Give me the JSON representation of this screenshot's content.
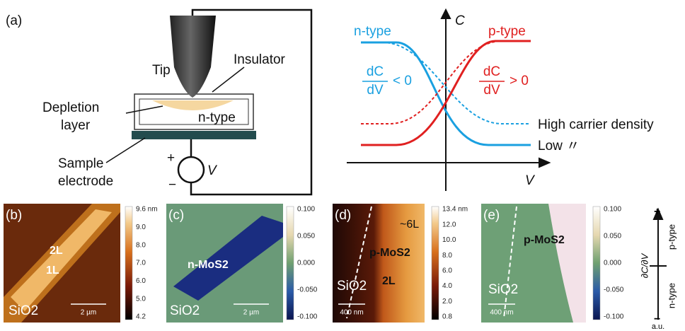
{
  "panel_a": {
    "label": "(a)",
    "schematic": {
      "tip": "Tip",
      "insulator": "Insulator",
      "depletion": [
        "Depletion",
        "layer"
      ],
      "n_type": "n-type",
      "electrode": [
        "Sample",
        "electrode"
      ],
      "plus": "+",
      "minus": "−",
      "voltage": "V"
    },
    "graph": {
      "y_axis": "C",
      "x_axis": "V",
      "n_type": "n-type",
      "p_type": "p-type",
      "n_formula": {
        "numerator": "dC",
        "denominator": "dV",
        "relation": "< 0"
      },
      "p_formula": {
        "numerator": "dC",
        "denominator": "dV",
        "relation": "> 0"
      },
      "high": "High carrier density",
      "low": "Low 〃"
    }
  },
  "panels": [
    {
      "label": "(b)",
      "texts": [
        "2L",
        "1L"
      ],
      "substrate": "SiO2",
      "scale": "2 µm",
      "colorbar": [
        "9.6 nm",
        "9.0",
        "8.0",
        "7.0",
        "6.0",
        "5.0",
        "4.2"
      ]
    },
    {
      "label": "(c)",
      "texts": [
        "n-MoS2"
      ],
      "substrate": "SiO2",
      "scale": "2 µm",
      "colorbar": [
        "0.100",
        "0.050",
        "0.000",
        "-0.050",
        "-0.100"
      ]
    },
    {
      "label": "(d)",
      "texts": [
        "~6L",
        "p-MoS2",
        "2L"
      ],
      "substrate": "SiO2",
      "scale": "400 nm",
      "colorbar": [
        "13.4 nm",
        "12.0",
        "10.0",
        "8.0",
        "6.0",
        "4.0",
        "2.0",
        "0.8"
      ]
    },
    {
      "label": "(e)",
      "texts": [
        "p-MoS2"
      ],
      "substrate": "SiO2",
      "scale": "400 nm",
      "colorbar": [
        "0.100",
        "0.050",
        "0.000",
        "-0.050",
        "-0.100"
      ]
    }
  ],
  "scale_axis": {
    "label": "∂C/∂V",
    "plus": "+",
    "minus": "−",
    "upper": "p-type",
    "lower": "n-type",
    "unit": "a.u."
  }
}
